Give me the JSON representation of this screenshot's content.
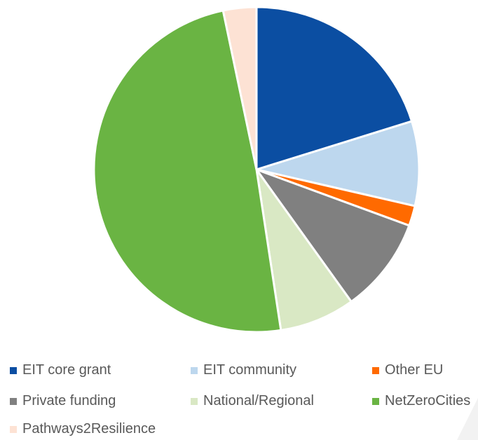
{
  "chart_data": {
    "type": "pie",
    "title": "",
    "categories": [
      "EIT core grant",
      "EIT community",
      "Other EU",
      "Private funding",
      "National/Regional",
      "NetZeroCities",
      "Pathways2Resilience"
    ],
    "values": [
      20.2,
      8.4,
      2.0,
      9.5,
      7.5,
      49.1,
      3.3
    ],
    "colors": [
      "#0B4EA2",
      "#BDD7EE",
      "#FF6A00",
      "#808080",
      "#D9E8C4",
      "#6AB443",
      "#FDE2D4"
    ],
    "legend_position": "bottom",
    "grid": false
  }
}
